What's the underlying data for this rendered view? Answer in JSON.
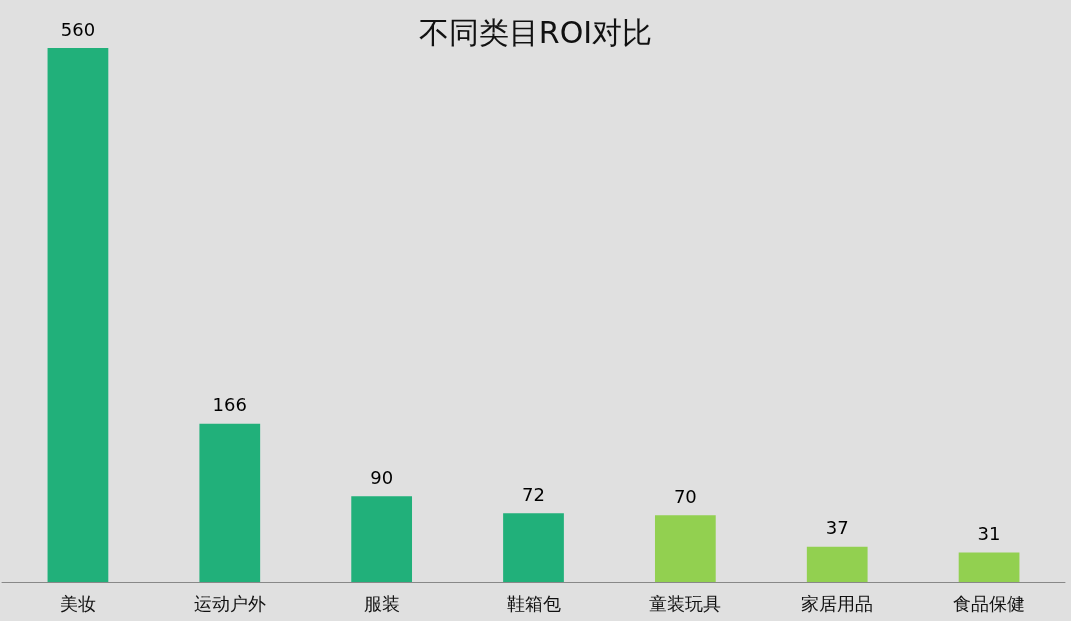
{
  "chart_data": {
    "type": "bar",
    "title": "不同类目ROI对比",
    "categories": [
      "美妆",
      "运动户外",
      "服装",
      "鞋箱包",
      "童装玩具",
      "家居用品",
      "食品保健"
    ],
    "values": [
      560,
      166,
      90,
      72,
      70,
      37,
      31
    ],
    "colors": [
      "#21b07a",
      "#21b07a",
      "#21b07a",
      "#21b07a",
      "#92d050",
      "#92d050",
      "#92d050"
    ],
    "data_labels": true
  }
}
